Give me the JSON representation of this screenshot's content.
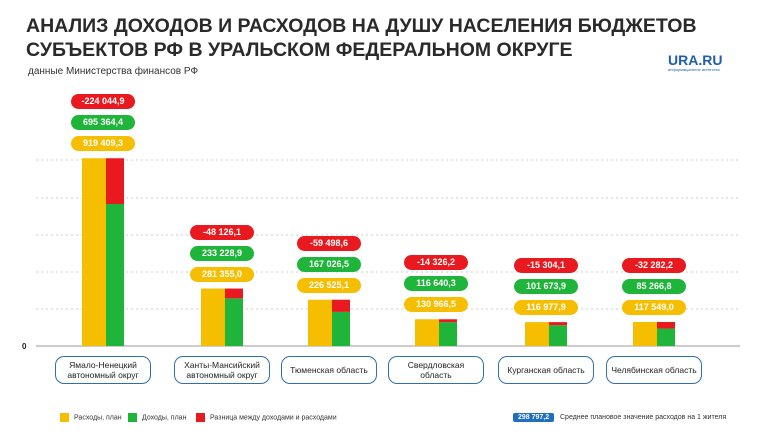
{
  "header": {
    "title_lines": [
      "АНАЛИЗ ДОХОДОВ И РАСХОДОВ НА ДУШУ НАСЕЛЕНИЯ БЮДЖЕТОВ",
      "СУБЪЕКТОВ РФ В УРАЛЬСКОМ ФЕДЕРАЛЬНОМ ОКРУГЕ"
    ],
    "subtitle": "данные Министерства финансов РФ",
    "logo": "URA.RU",
    "logo_tagline": "информационное агентство"
  },
  "chart_data": {
    "type": "bar",
    "categories": [
      "Ямало-Ненецкий автономный округ",
      "Ханты-Мансийский автономный округ",
      "Тюменская область",
      "Свердловская область",
      "Курганская область",
      "Челябинская область"
    ],
    "series": [
      {
        "name": "Расходы, план",
        "color": "#f5be00",
        "values": [
          919409.3,
          281355.0,
          226525.1,
          130966.5,
          116977.9,
          117549.0
        ],
        "value_labels": [
          "919 409,3",
          "281 355,0",
          "226 525,1",
          "130 966,5",
          "116 977,9",
          "117 549,0"
        ]
      },
      {
        "name": "Доходы, план",
        "color": "#1fb53a",
        "values": [
          695364.4,
          233228.9,
          167026.5,
          116640.3,
          101673.9,
          85266.8
        ],
        "value_labels": [
          "695 364,4",
          "233 228,9",
          "167 026,5",
          "116 640,3",
          "101 673,9",
          "85 266,8"
        ]
      },
      {
        "name": "Разница между доходами и расходами",
        "color": "#e81a1f",
        "values": [
          -224044.9,
          -48126.1,
          -59498.6,
          -14326.2,
          -15304.1,
          -32282.2
        ],
        "value_labels": [
          "-224 044,9",
          "-48 126,1",
          "-59 498,6",
          "-14 326,2",
          "-15 304,1",
          "-32 282,2"
        ]
      }
    ],
    "ylim": [
      0,
      950000
    ],
    "yticks": [
      0
    ],
    "average": {
      "value_label": "298 797,2",
      "label": "Среднее плановое значение расходов на 1 жителя"
    }
  }
}
